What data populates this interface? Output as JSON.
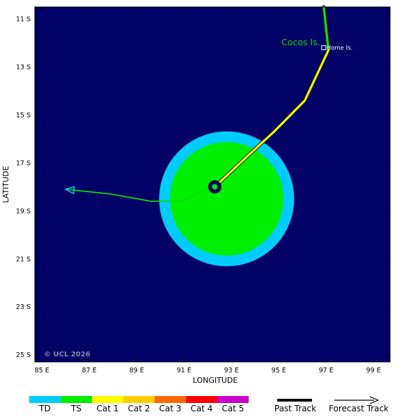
{
  "map": {
    "background_color": "#000066",
    "place_label": "Cocos Is.",
    "place_label_color": "#00dd00",
    "marker_label": "Home Is.",
    "copyright": "© UCL 2026",
    "x_axis_title": "LONGITUDE",
    "y_axis_title": "LATITUDE",
    "x_ticks": [
      {
        "value": 85,
        "label": "85 E"
      },
      {
        "value": 87,
        "label": "87 E"
      },
      {
        "value": 89,
        "label": "89 E"
      },
      {
        "value": 91,
        "label": "91 E"
      },
      {
        "value": 93,
        "label": "93 E"
      },
      {
        "value": 95,
        "label": "95 E"
      },
      {
        "value": 97,
        "label": "97 E"
      },
      {
        "value": 99,
        "label": "99 E"
      }
    ],
    "y_ticks": [
      {
        "value": -11,
        "label": "11 S"
      },
      {
        "value": -13,
        "label": "13 S"
      },
      {
        "value": -15,
        "label": "15 S"
      },
      {
        "value": -17,
        "label": "17 S"
      },
      {
        "value": -19,
        "label": "19 S"
      },
      {
        "value": -21,
        "label": "21 S"
      },
      {
        "value": -23,
        "label": "23 S"
      },
      {
        "value": -25,
        "label": "25 S"
      }
    ],
    "x_range": [
      84.7,
      99.7
    ],
    "y_range": [
      -25.3,
      -10.5
    ],
    "storm_center": {
      "lon": 92.3,
      "lat": -18.0
    },
    "wind_radii": [
      {
        "category": "TD",
        "lon": 92.8,
        "lat": -18.5,
        "radius_deg": 2.85,
        "color": "#00ccff"
      },
      {
        "category": "TS",
        "lon": 92.8,
        "lat": -18.5,
        "radius_deg": 2.4,
        "color": "#00ee00"
      }
    ],
    "past_track": [
      {
        "lon": 96.9,
        "lat": -10.5,
        "category": "TS"
      },
      {
        "lon": 97.1,
        "lat": -12.3,
        "category": "TS"
      },
      {
        "lon": 96.1,
        "lat": -14.4,
        "category": "Cat 1"
      },
      {
        "lon": 94.8,
        "lat": -15.7,
        "category": "Cat 1"
      },
      {
        "lon": 93.7,
        "lat": -16.7,
        "category": "Cat 1"
      },
      {
        "lon": 92.3,
        "lat": -18.0,
        "category": "Cat 1"
      }
    ],
    "forecast_track": [
      {
        "lon": 92.3,
        "lat": -18.0
      },
      {
        "lon": 91.9,
        "lat": -18.1
      },
      {
        "lon": 90.9,
        "lat": -18.6
      },
      {
        "lon": 89.6,
        "lat": -18.6
      },
      {
        "lon": 87.9,
        "lat": -18.3
      },
      {
        "lon": 86.0,
        "lat": -18.1
      }
    ],
    "home_island": {
      "lon": 96.9,
      "lat": -12.2
    }
  },
  "legend": {
    "categories": [
      {
        "label": "TD",
        "color": "#00ccff"
      },
      {
        "label": "TS",
        "color": "#00ee00"
      },
      {
        "label": "Cat 1",
        "color": "#ffff00"
      },
      {
        "label": "Cat 2",
        "color": "#ffcc00"
      },
      {
        "label": "Cat 3",
        "color": "#ff6600"
      },
      {
        "label": "Cat 4",
        "color": "#ff0000"
      },
      {
        "label": "Cat 5",
        "color": "#cc00cc"
      }
    ],
    "past_track_label": "Past Track",
    "forecast_track_label": "Forecast Track"
  }
}
